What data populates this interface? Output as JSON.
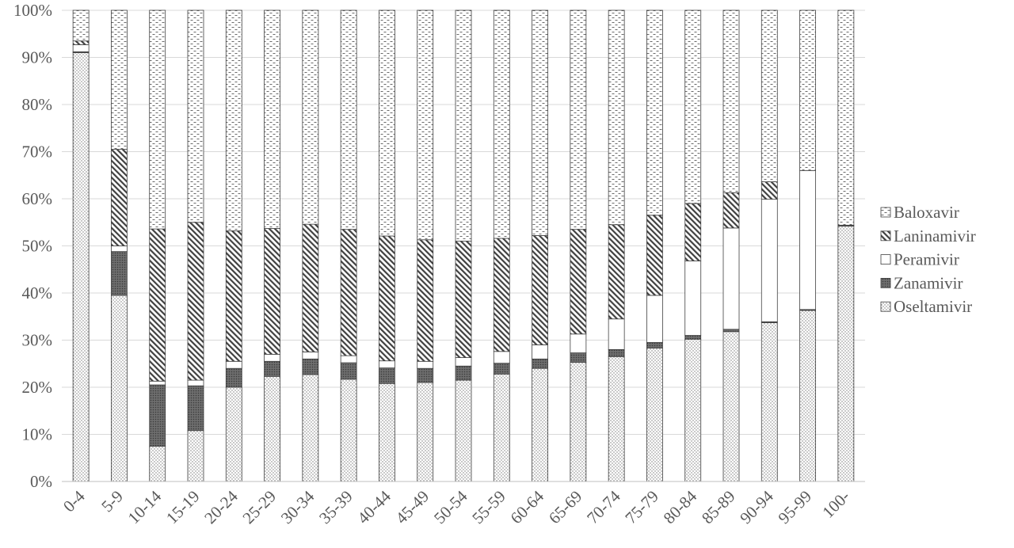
{
  "chart_data": {
    "type": "bar",
    "stacked": true,
    "normalized": true,
    "title": "",
    "xlabel": "",
    "ylabel": "",
    "ylim": [
      0,
      1
    ],
    "y_ticks": [
      "0%",
      "10%",
      "20%",
      "30%",
      "40%",
      "50%",
      "60%",
      "70%",
      "80%",
      "90%",
      "100%"
    ],
    "grid": "horizontal",
    "legend_position": "right",
    "categories": [
      "0-4",
      "5-9",
      "10-14",
      "15-19",
      "20-24",
      "25-29",
      "30-34",
      "35-39",
      "40-44",
      "45-49",
      "50-54",
      "55-59",
      "60-64",
      "65-69",
      "70-74",
      "75-79",
      "80-84",
      "85-89",
      "90-94",
      "95-99",
      "100-"
    ],
    "series": [
      {
        "name": "Oseltamivir",
        "pattern": "dots",
        "values": [
          91.0,
          39.5,
          7.5,
          10.8,
          20.0,
          22.3,
          22.7,
          21.7,
          20.8,
          21.0,
          21.5,
          22.8,
          24.0,
          25.3,
          26.5,
          28.3,
          30.2,
          31.8,
          33.7,
          36.3,
          54.2
        ]
      },
      {
        "name": "Zanamivir",
        "pattern": "dark-dots",
        "values": [
          0.2,
          9.3,
          13.0,
          9.5,
          4.0,
          3.2,
          3.3,
          3.5,
          3.3,
          3.0,
          3.0,
          2.3,
          2.0,
          2.0,
          1.5,
          1.2,
          0.8,
          0.5,
          0.2,
          0.2,
          0.2
        ]
      },
      {
        "name": "Peramivir",
        "pattern": "white",
        "values": [
          1.5,
          1.2,
          0.8,
          1.2,
          1.5,
          1.5,
          1.5,
          1.5,
          1.5,
          1.5,
          1.8,
          2.5,
          3.0,
          4.0,
          6.5,
          10.0,
          15.8,
          21.5,
          26.0,
          29.5,
          0.0
        ]
      },
      {
        "name": "Laninamivir",
        "pattern": "diagonal",
        "values": [
          0.8,
          20.5,
          32.3,
          33.5,
          27.7,
          26.7,
          27.1,
          26.8,
          26.5,
          25.8,
          24.7,
          24.0,
          23.2,
          22.2,
          20.0,
          17.0,
          12.2,
          7.5,
          3.7,
          0.0,
          0.0
        ]
      },
      {
        "name": "Baloxavir",
        "pattern": "dashes",
        "values": [
          6.5,
          29.5,
          46.4,
          45.0,
          46.8,
          46.3,
          45.4,
          46.5,
          47.9,
          48.7,
          49.0,
          48.4,
          47.8,
          46.5,
          45.5,
          43.5,
          41.0,
          38.7,
          36.4,
          34.0,
          45.6
        ]
      }
    ],
    "legend": [
      "Baloxavir",
      "Laninamivir",
      "Peramivir",
      "Zanamivir",
      "Oseltamivir"
    ]
  }
}
